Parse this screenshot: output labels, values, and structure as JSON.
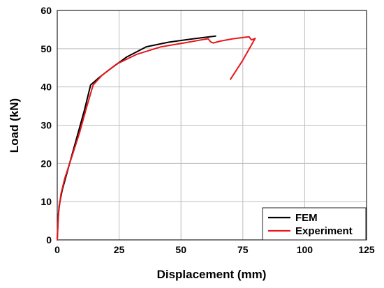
{
  "chart_data": {
    "type": "line",
    "xlabel": "Displacement (mm)",
    "ylabel": "Load (kN)",
    "xlim": [
      0,
      125
    ],
    "ylim": [
      0,
      60
    ],
    "xticks": [
      0,
      25,
      50,
      75,
      100,
      125
    ],
    "yticks": [
      0,
      10,
      20,
      30,
      40,
      50,
      60
    ],
    "grid": true,
    "legend_position": "bottom-right",
    "series": [
      {
        "name": "FEM",
        "color": "#000000",
        "points": [
          [
            0,
            0
          ],
          [
            0.3,
            5
          ],
          [
            0.8,
            9
          ],
          [
            2,
            13
          ],
          [
            5,
            20
          ],
          [
            8,
            27
          ],
          [
            11,
            34
          ],
          [
            13.5,
            40.5
          ],
          [
            17,
            42.5
          ],
          [
            22,
            45
          ],
          [
            28,
            47.8
          ],
          [
            36,
            50.5
          ],
          [
            45,
            51.7
          ],
          [
            55,
            52.6
          ],
          [
            64,
            53.3
          ]
        ]
      },
      {
        "name": "Experiment",
        "color": "#e8171b",
        "points": [
          [
            0,
            0
          ],
          [
            0.5,
            7
          ],
          [
            1.5,
            12
          ],
          [
            3,
            16
          ],
          [
            6,
            22
          ],
          [
            9,
            28
          ],
          [
            12,
            35
          ],
          [
            14.5,
            40.5
          ],
          [
            18,
            43
          ],
          [
            24,
            46
          ],
          [
            32,
            48.5
          ],
          [
            42,
            50.5
          ],
          [
            52,
            51.6
          ],
          [
            59,
            52.4
          ],
          [
            61,
            52.6
          ],
          [
            62,
            51.8
          ],
          [
            63,
            51.5
          ],
          [
            66,
            52
          ],
          [
            71,
            52.6
          ],
          [
            76,
            53
          ],
          [
            77.5,
            53.1
          ],
          [
            78.5,
            52.3
          ],
          [
            80,
            52.7
          ],
          [
            75,
            47
          ],
          [
            70,
            42
          ]
        ]
      }
    ]
  }
}
